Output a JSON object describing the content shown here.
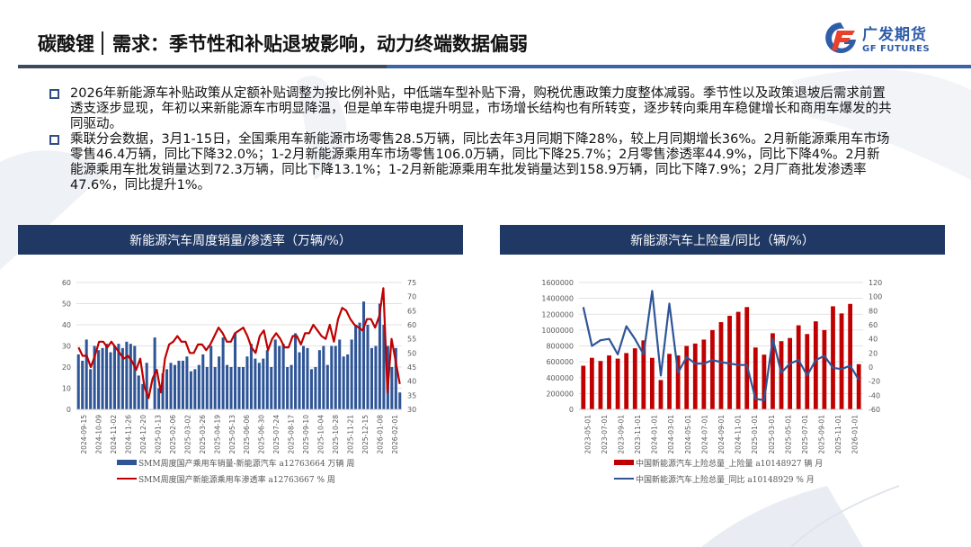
{
  "header": {
    "section": "碳酸锂",
    "title": "需求：季节性和补贴退坡影响，动力终端数据偏弱",
    "logo_cn": "广发期货",
    "logo_en": "GF FUTURES"
  },
  "colors": {
    "navy": "#1f3864",
    "bar_blue": "#2f5597",
    "line_red": "#c00000",
    "bar_red": "#c00000",
    "line_blue": "#2f5597"
  },
  "bullets": [
    {
      "text": "2026年新能源车补贴政策从定额补贴调整为按比例补贴，中低端车型补贴下滑，购税优惠政策力度整体减弱。季节性以及政策退坡后需求前置透支逐步显现，年初以来新能源车市明显降温，但是单车带电提升明显，市场增长结构也有所转变，逐步转向乘用车稳健增长和商用车爆发的共同驱动。"
    },
    {
      "text": "乘联分会数据，3月1-15日，全国乘用车新能源市场零售28.5万辆，同比去年3月同期下降28%，较上月同期增长36%。2月新能源乘用车市场零售46.4万辆，同比下降32.0%；1-2月新能源乘用车市场零售106.0万辆，同比下降25.7%；2月零售渗透率44.9%，同比下降4%。2月新能源乘用车批发销量达到72.3万辆，同比下降13.1%；1-2月新能源乘用车批发销量达到158.9万辆，同比下降7.9%；2月厂商批发渗透率47.6%，同比提升1%。"
    }
  ],
  "panels": [
    {
      "title": "新能源汽车周度销量/渗透率（万辆/%）"
    },
    {
      "title": "新能源汽车上险量/同比（辆/%）"
    }
  ],
  "chart_data": [
    {
      "type": "bar+line",
      "title": "新能源汽车周度销量/渗透率（万辆/%）",
      "x_tick_labels": [
        "2024-09-15",
        "2024-10-09",
        "2024-11-02",
        "2024-11-26",
        "2024-12-20",
        "2025-01-13",
        "2025-02-06",
        "2025-03-02",
        "2025-03-26",
        "2025-04-19",
        "2025-05-13",
        "2025-06-06",
        "2025-06-30",
        "2025-07-24",
        "2025-08-17",
        "2025-09-10",
        "2025-10-04",
        "2025-10-28",
        "2025-11-21",
        "2025-12-15",
        "2026-01-08",
        "2026-02-01"
      ],
      "y_left": {
        "ticks": [
          0,
          10,
          20,
          30,
          40,
          50,
          60
        ],
        "range": [
          0,
          60
        ]
      },
      "y_right": {
        "ticks": [
          30,
          35,
          40,
          45,
          50,
          55,
          60,
          65,
          70,
          75
        ],
        "range": [
          30,
          75
        ]
      },
      "grid": true,
      "legend_position": "bottom",
      "series": [
        {
          "name": "SMM周度国产乘用车销量-新能源汽车 a12763664 万辆 周",
          "type": "bar",
          "axis": "left",
          "values": [
            26,
            23,
            33,
            19,
            30,
            28,
            29,
            31,
            27,
            30,
            31,
            29,
            32,
            31,
            30,
            16,
            12,
            22,
            0,
            34,
            10,
            17,
            19,
            22,
            21,
            23,
            23,
            25,
            18,
            19,
            21,
            26,
            20,
            30,
            20,
            25,
            34,
            21,
            20,
            36,
            20,
            20,
            25,
            31,
            24,
            22,
            24,
            28,
            20,
            33,
            30,
            31,
            20,
            21,
            36,
            27,
            30,
            29,
            19,
            20,
            28,
            30,
            21,
            30,
            30,
            33,
            25,
            26,
            33,
            40,
            41,
            51,
            40,
            29,
            30,
            50,
            40,
            30,
            20,
            29,
            8
          ]
        },
        {
          "name": "SMM周度国产新能源乘用车渗透率 a12763667 % 周",
          "type": "line",
          "axis": "right",
          "values": [
            52,
            49,
            49,
            45,
            49,
            54,
            54,
            52,
            54,
            52,
            50,
            48,
            49,
            47,
            44,
            48,
            38,
            34,
            41,
            44,
            36,
            48,
            53,
            54,
            56,
            54,
            54,
            50,
            50,
            53,
            53,
            51,
            53,
            56,
            59,
            57,
            54,
            54,
            57,
            58,
            59,
            56,
            52,
            50,
            56,
            58,
            51,
            55,
            57,
            55,
            52,
            52,
            56,
            56,
            53,
            57,
            57,
            60,
            58,
            56,
            55,
            60,
            54,
            62,
            66,
            65,
            62,
            60,
            59,
            58,
            62,
            62,
            59,
            63,
            73,
            36,
            55,
            47,
            39
          ]
        }
      ]
    },
    {
      "type": "bar+line",
      "title": "新能源汽车上险量/同比（辆/%）",
      "x_tick_labels": [
        "2023-05-01",
        "2023-07-01",
        "2023-09-01",
        "2023-11-01",
        "2024-01-01",
        "2024-03-01",
        "2024-05-01",
        "2024-07-01",
        "2024-09-01",
        "2024-11-01",
        "2025-01-01",
        "2025-03-01",
        "2025-05-01",
        "2025-07-01",
        "2025-09-01",
        "2025-11-01",
        "2026-01-01"
      ],
      "categories": [
        "2023-05",
        "2023-06",
        "2023-07",
        "2023-08",
        "2023-09",
        "2023-10",
        "2023-11",
        "2023-12",
        "2024-01",
        "2024-02",
        "2024-03",
        "2024-04",
        "2024-05",
        "2024-06",
        "2024-07",
        "2024-08",
        "2024-09",
        "2024-10",
        "2024-11",
        "2024-12",
        "2025-01",
        "2025-02",
        "2025-03",
        "2025-04",
        "2025-05",
        "2025-06",
        "2025-07",
        "2025-08",
        "2025-09",
        "2025-10",
        "2025-11",
        "2025-12",
        "2026-01"
      ],
      "y_left": {
        "ticks": [
          0,
          200000,
          400000,
          600000,
          800000,
          1000000,
          1200000,
          1400000,
          1600000
        ],
        "range": [
          0,
          1600000
        ]
      },
      "y_right": {
        "ticks": [
          -60,
          -40,
          -20,
          0,
          20,
          40,
          60,
          80,
          100,
          120
        ],
        "range": [
          -60,
          120
        ]
      },
      "grid": true,
      "legend_position": "bottom",
      "series": [
        {
          "name": "中国新能源汽车上险总量_上险量 a10148927 辆 月",
          "type": "bar",
          "axis": "left",
          "values": [
            550000,
            650000,
            610000,
            680000,
            640000,
            710000,
            770000,
            870000,
            650000,
            370000,
            700000,
            680000,
            800000,
            830000,
            880000,
            1000000,
            1100000,
            1180000,
            1230000,
            1290000,
            780000,
            690000,
            960000,
            860000,
            900000,
            1060000,
            950000,
            1110000,
            1000000,
            1300000,
            1210000,
            1330000,
            570000
          ]
        },
        {
          "name": "中国新能源汽车上险总量_同比 a10148929 % 月",
          "type": "line",
          "axis": "right",
          "values": [
            85,
            30,
            38,
            40,
            18,
            58,
            40,
            18,
            108,
            -12,
            90,
            -8,
            14,
            5,
            5,
            10,
            7,
            5,
            3,
            3,
            -45,
            -47,
            40,
            -8,
            5,
            10,
            -12,
            10,
            16,
            -1,
            -3,
            2,
            -18
          ]
        }
      ]
    }
  ]
}
